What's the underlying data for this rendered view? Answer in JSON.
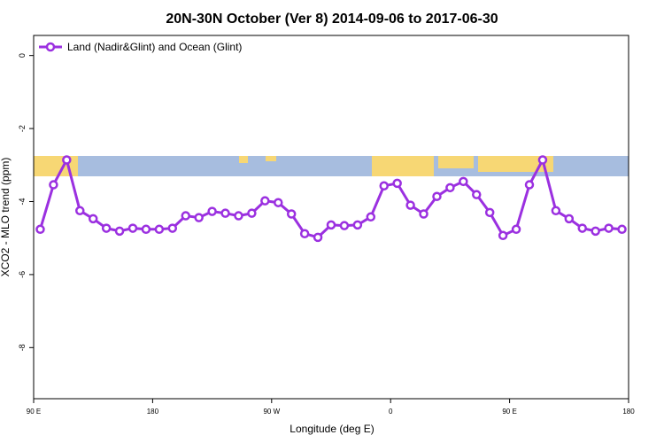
{
  "chart_data": {
    "type": "line",
    "title": "20N-30N October (Ver 8)   2014-09-06 to 2017-06-30",
    "x_label": "Longitude (deg E)",
    "y_label": "XCO2 - MLO trend (ppm)",
    "x": [
      95,
      105,
      115,
      125,
      135,
      145,
      155,
      165,
      175,
      185,
      195,
      205,
      215,
      225,
      235,
      245,
      255,
      265,
      275,
      285,
      295,
      305,
      315,
      325,
      335,
      345,
      355,
      365,
      375,
      385,
      395,
      405,
      415,
      425,
      435,
      445,
      455,
      465,
      475,
      485,
      495,
      505,
      515,
      525,
      535
    ],
    "series": [
      {
        "name": "Land (Nadir&Glint) and Ocean (Glint)",
        "color": "#9b30e0",
        "values": [
          -4.76,
          -3.54,
          -2.86,
          -4.25,
          -4.47,
          -4.73,
          -4.81,
          -4.73,
          -4.76,
          -4.76,
          -4.73,
          -4.39,
          -4.44,
          -4.27,
          -4.32,
          -4.39,
          -4.32,
          -3.98,
          -4.03,
          -4.34,
          -4.88,
          -4.98,
          -4.64,
          -4.66,
          -4.64,
          -4.42,
          -3.57,
          -3.5,
          -4.1,
          -4.34,
          -3.86,
          -3.62,
          -3.45,
          -3.81,
          -4.3,
          -4.93,
          -4.76,
          -3.54,
          -2.86,
          -4.25,
          -4.47,
          -4.73,
          -4.81,
          -4.73,
          -4.76
        ]
      }
    ],
    "xlim": [
      90,
      540
    ],
    "xticks": [
      {
        "value": 90,
        "label": "90 E"
      },
      180,
      {
        "value": 270,
        "label": "90 W"
      },
      {
        "value": 360,
        "label": "0"
      },
      {
        "value": 450,
        "label": "90 E"
      },
      {
        "value": 540,
        "label": "180"
      }
    ],
    "ylim": [
      -9.4,
      0.55
    ],
    "yticks": [
      0,
      -2,
      -4,
      -6,
      -8
    ],
    "legend": "top-left"
  }
}
